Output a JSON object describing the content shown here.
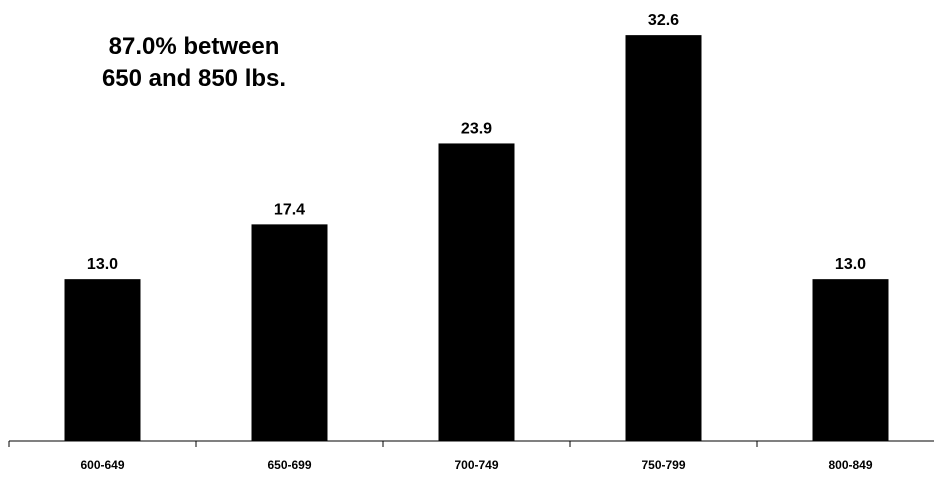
{
  "chart_data": {
    "type": "bar",
    "categories": [
      "600-649",
      "650-699",
      "700-749",
      "750-799",
      "800-849"
    ],
    "values": [
      13.0,
      17.4,
      23.9,
      32.6,
      13.0
    ],
    "value_labels": [
      "13.0",
      "17.4",
      "23.9",
      "32.6",
      "13.0"
    ],
    "title": "",
    "xlabel": "",
    "ylabel": "",
    "ylim": [
      0,
      35
    ],
    "grid": false,
    "annotation": {
      "lines": [
        "87.0% between",
        "650 and 850 lbs."
      ]
    },
    "colors": {
      "bar": "#000000",
      "axis": "#000000",
      "background": "#ffffff"
    }
  }
}
